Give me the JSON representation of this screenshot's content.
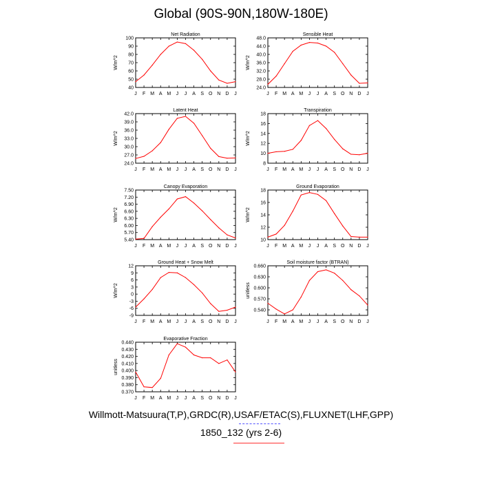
{
  "title": "Global (90S-90N,180W-180E)",
  "footer": {
    "line1": "Willmott-Matsuura(T,P),GRDC(R),USAF/ETAC(S),FLUXNET(LHF,GPP)",
    "line2": "1850_132 (yrs 2-6)"
  },
  "colors": {
    "series": "#ff0000",
    "axis": "#000000",
    "underline": "#ff3030",
    "dash": "#5050ff"
  },
  "chart_data": [
    {
      "type": "line",
      "title": "Net Radiation",
      "ylabel": "W/m^2",
      "categories": [
        "J",
        "F",
        "M",
        "A",
        "M",
        "J",
        "J",
        "A",
        "S",
        "O",
        "N",
        "D",
        "J"
      ],
      "ylim": [
        40,
        100
      ],
      "yticks": [
        40,
        50,
        60,
        70,
        80,
        90,
        100
      ],
      "ytick_labels": [
        "40",
        "50",
        "60",
        "70",
        "80",
        "90",
        "100"
      ],
      "values": [
        47,
        55,
        67,
        80,
        90,
        95,
        93,
        85,
        74,
        60,
        49,
        45,
        47
      ]
    },
    {
      "type": "line",
      "title": "Sensible Heat",
      "ylabel": "W/m^2",
      "categories": [
        "J",
        "F",
        "M",
        "A",
        "M",
        "J",
        "J",
        "A",
        "S",
        "O",
        "N",
        "D",
        "J"
      ],
      "ylim": [
        24,
        48
      ],
      "yticks": [
        24,
        28,
        32,
        36,
        40,
        44,
        48
      ],
      "ytick_labels": [
        "24.0",
        "28.0",
        "32.0",
        "36.0",
        "40.0",
        "44.0",
        "48.0"
      ],
      "values": [
        25.5,
        29.5,
        35.5,
        41.5,
        44.5,
        45.8,
        45.5,
        44,
        41,
        35.5,
        30,
        26,
        26.2
      ]
    },
    {
      "type": "line",
      "title": "Latent Heat",
      "ylabel": "W/m^2",
      "categories": [
        "J",
        "F",
        "M",
        "A",
        "M",
        "J",
        "J",
        "A",
        "S",
        "O",
        "N",
        "D",
        "J"
      ],
      "ylim": [
        24,
        42
      ],
      "yticks": [
        24,
        27,
        30,
        33,
        36,
        39,
        42
      ],
      "ytick_labels": [
        "24.0",
        "27.0",
        "30.0",
        "33.0",
        "36.0",
        "39.0",
        "42.0"
      ],
      "values": [
        25.7,
        26.5,
        28.5,
        31.5,
        36.3,
        40.3,
        41,
        38.5,
        34,
        29.4,
        26.4,
        25.8,
        25.9
      ]
    },
    {
      "type": "line",
      "title": "Transpiration",
      "ylabel": "W/m^2",
      "categories": [
        "J",
        "F",
        "M",
        "A",
        "M",
        "J",
        "J",
        "A",
        "S",
        "O",
        "N",
        "D",
        "J"
      ],
      "ylim": [
        8,
        18
      ],
      "yticks": [
        8,
        10,
        12,
        14,
        16,
        18
      ],
      "ytick_labels": [
        "8",
        "10",
        "12",
        "14",
        "16",
        "18"
      ],
      "values": [
        10,
        10.3,
        10.4,
        10.8,
        12.6,
        15.6,
        16.6,
        15,
        12.8,
        10.9,
        9.8,
        9.7,
        10
      ]
    },
    {
      "type": "line",
      "title": "Canopy Evaporation",
      "ylabel": "W/m^2",
      "categories": [
        "J",
        "F",
        "M",
        "A",
        "M",
        "J",
        "J",
        "A",
        "S",
        "O",
        "N",
        "D",
        "J"
      ],
      "ylim": [
        5.4,
        7.5
      ],
      "yticks": [
        5.4,
        5.7,
        6.0,
        6.3,
        6.6,
        6.9,
        7.2,
        7.5
      ],
      "ytick_labels": [
        "5.40",
        "5.70",
        "6.00",
        "6.30",
        "6.60",
        "6.90",
        "7.20",
        "7.50"
      ],
      "values": [
        5.42,
        5.45,
        5.95,
        6.35,
        6.7,
        7.12,
        7.22,
        6.95,
        6.62,
        6.25,
        5.9,
        5.6,
        5.47
      ]
    },
    {
      "type": "line",
      "title": "Ground Evaporation",
      "ylabel": "W/m^2",
      "categories": [
        "J",
        "F",
        "M",
        "A",
        "M",
        "J",
        "J",
        "A",
        "S",
        "O",
        "N",
        "D",
        "J"
      ],
      "ylim": [
        10,
        18
      ],
      "yticks": [
        10,
        12,
        14,
        16,
        18
      ],
      "ytick_labels": [
        "10",
        "12",
        "14",
        "16",
        "18"
      ],
      "values": [
        10.4,
        10.9,
        12.3,
        14.6,
        17.2,
        17.6,
        17.3,
        16.3,
        14.2,
        12.2,
        10.5,
        10.4,
        10.4
      ]
    },
    {
      "type": "line",
      "title": "Ground Heat + Snow Melt",
      "ylabel": "W/m^2",
      "categories": [
        "J",
        "F",
        "M",
        "A",
        "M",
        "J",
        "J",
        "A",
        "S",
        "O",
        "N",
        "D",
        "J"
      ],
      "ylim": [
        -9,
        12
      ],
      "yticks": [
        -9,
        -6,
        -3,
        0,
        3,
        6,
        9,
        12
      ],
      "ytick_labels": [
        "-9",
        "-6",
        "-3",
        "0",
        "3",
        "6",
        "9",
        "12"
      ],
      "values": [
        -5.5,
        -2,
        2,
        7,
        9.2,
        9,
        7,
        4,
        0.5,
        -4,
        -7.3,
        -6.8,
        -5.5
      ]
    },
    {
      "type": "line",
      "title": "Soil moisture factor (BTRAN)",
      "ylabel": "unitless",
      "categories": [
        "J",
        "F",
        "M",
        "A",
        "M",
        "J",
        "J",
        "A",
        "S",
        "O",
        "N",
        "D",
        "J"
      ],
      "ylim": [
        0.525,
        0.66
      ],
      "yticks": [
        0.54,
        0.57,
        0.6,
        0.63,
        0.66
      ],
      "ytick_labels": [
        "0.540",
        "0.570",
        "0.600",
        "0.630",
        "0.660"
      ],
      "values": [
        0.558,
        0.542,
        0.529,
        0.54,
        0.575,
        0.62,
        0.644,
        0.649,
        0.64,
        0.62,
        0.595,
        0.578,
        0.553
      ]
    },
    {
      "type": "line",
      "title": "Evaporative Fraction",
      "ylabel": "unitless",
      "categories": [
        "J",
        "F",
        "M",
        "A",
        "M",
        "J",
        "J",
        "A",
        "S",
        "O",
        "N",
        "D",
        "J"
      ],
      "ylim": [
        0.37,
        0.44
      ],
      "yticks": [
        0.37,
        0.38,
        0.39,
        0.4,
        0.41,
        0.42,
        0.43,
        0.44
      ],
      "ytick_labels": [
        "0.370",
        "0.380",
        "0.390",
        "0.400",
        "0.410",
        "0.420",
        "0.430",
        "0.440"
      ],
      "values": [
        0.398,
        0.377,
        0.376,
        0.389,
        0.422,
        0.438,
        0.433,
        0.422,
        0.418,
        0.418,
        0.41,
        0.415,
        0.398
      ]
    }
  ]
}
